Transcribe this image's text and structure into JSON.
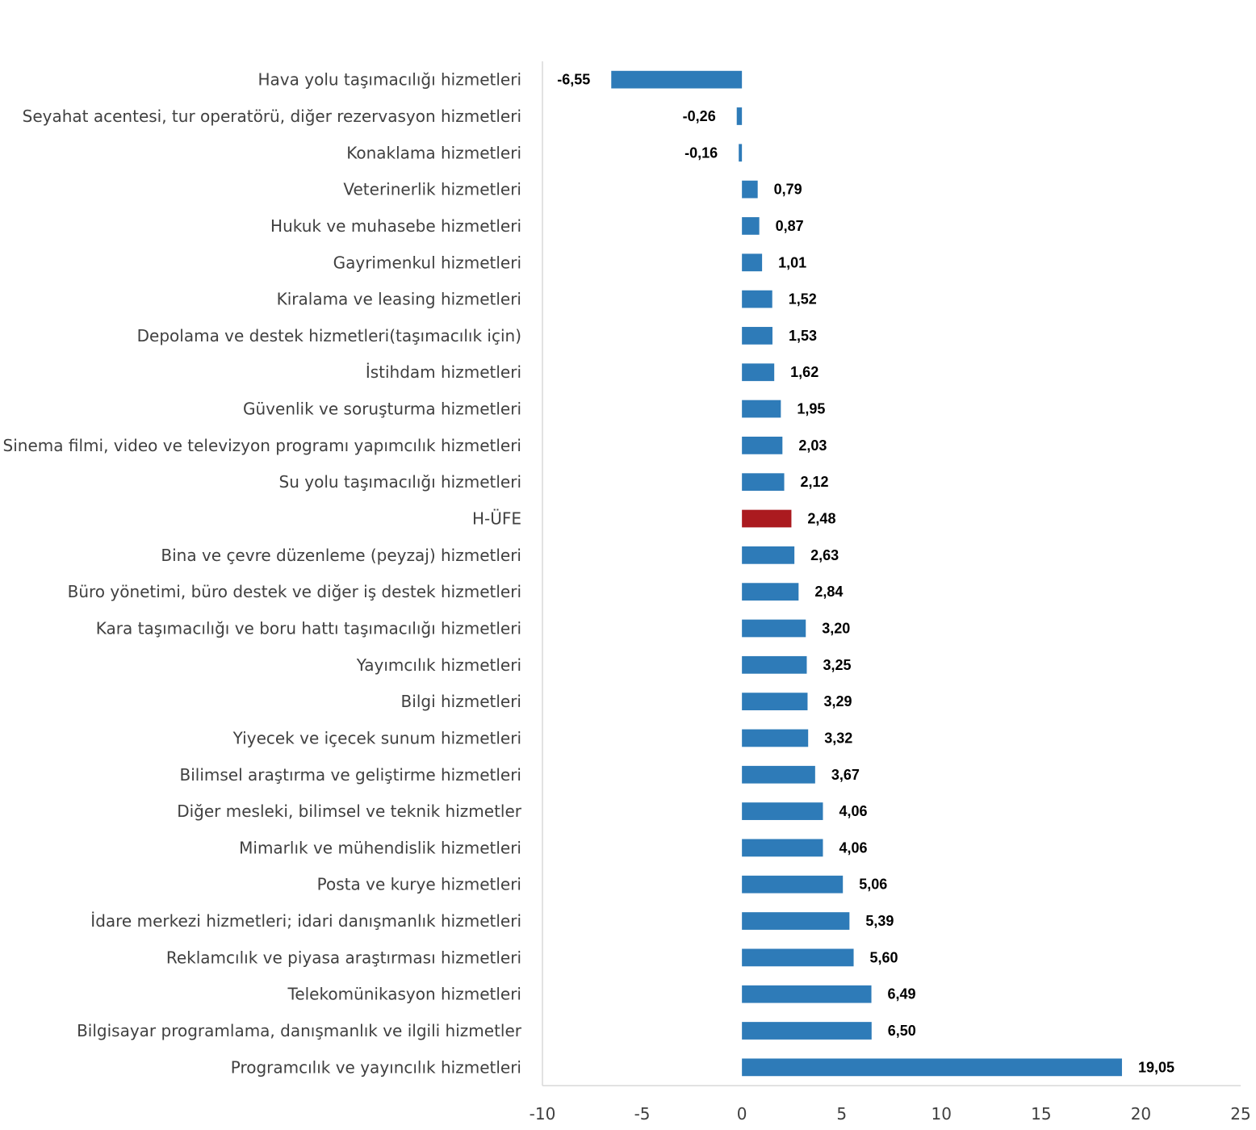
{
  "chart_data": {
    "type": "bar",
    "orientation": "horizontal",
    "title": "",
    "xlabel": "",
    "ylabel": "",
    "xlim": [
      -10,
      25
    ],
    "x_ticks": [
      "-10",
      "-5",
      "0",
      "5",
      "10",
      "15",
      "20",
      "25"
    ],
    "x_tick_values": [
      -10,
      -5,
      0,
      5,
      10,
      15,
      20,
      25
    ],
    "grid": false,
    "legend": "none",
    "colors": {
      "default": "#2e7bb8",
      "highlight": "#ab1a1f",
      "axis": "#d9d9d9"
    },
    "highlight_category": "H-ÜFE",
    "categories": [
      "Hava yolu taşımacılığı hizmetleri",
      "Seyahat acentesi, tur operatörü, diğer rezervasyon hizmetleri",
      "Konaklama hizmetleri",
      "Veterinerlik hizmetleri",
      "Hukuk ve muhasebe hizmetleri",
      "Gayrimenkul hizmetleri",
      "Kiralama ve leasing hizmetleri",
      "Depolama ve destek hizmetleri(taşımacılık için)",
      "İstihdam hizmetleri",
      "Güvenlik ve soruşturma hizmetleri",
      "Sinema filmi, video ve televizyon programı yapımcılık hizmetleri",
      "Su yolu taşımacılığı hizmetleri",
      "H-ÜFE",
      "Bina ve çevre düzenleme (peyzaj) hizmetleri",
      "Büro yönetimi, büro destek ve diğer iş destek hizmetleri",
      "Kara taşımacılığı ve boru hattı taşımacılığı hizmetleri",
      "Yayımcılık hizmetleri",
      "Bilgi hizmetleri",
      "Yiyecek ve içecek sunum hizmetleri",
      "Bilimsel araştırma ve geliştirme hizmetleri",
      "Diğer mesleki, bilimsel ve teknik hizmetler",
      "Mimarlık ve mühendislik hizmetleri",
      "Posta ve kurye hizmetleri",
      "İdare merkezi hizmetleri; idari danışmanlık hizmetleri",
      "Reklamcılık ve piyasa araştırması hizmetleri",
      "Telekomünikasyon hizmetleri",
      "Bilgisayar programlama, danışmanlık ve ilgili hizmetler",
      "Programcılık ve yayıncılık hizmetleri"
    ],
    "values": [
      -6.55,
      -0.26,
      -0.16,
      0.79,
      0.87,
      1.01,
      1.52,
      1.53,
      1.62,
      1.95,
      2.03,
      2.12,
      2.48,
      2.63,
      2.84,
      3.2,
      3.25,
      3.29,
      3.32,
      3.67,
      4.06,
      4.06,
      5.06,
      5.39,
      5.6,
      6.49,
      6.5,
      19.05
    ],
    "value_labels": [
      "-6,55",
      "-0,26",
      "-0,16",
      "0,79",
      "0,87",
      "1,01",
      "1,52",
      "1,53",
      "1,62",
      "1,95",
      "2,03",
      "2,12",
      "2,48",
      "2,63",
      "2,84",
      "3,20",
      "3,25",
      "3,29",
      "3,32",
      "3,67",
      "4,06",
      "4,06",
      "5,06",
      "5,39",
      "5,60",
      "6,49",
      "6,50",
      "19,05"
    ]
  }
}
